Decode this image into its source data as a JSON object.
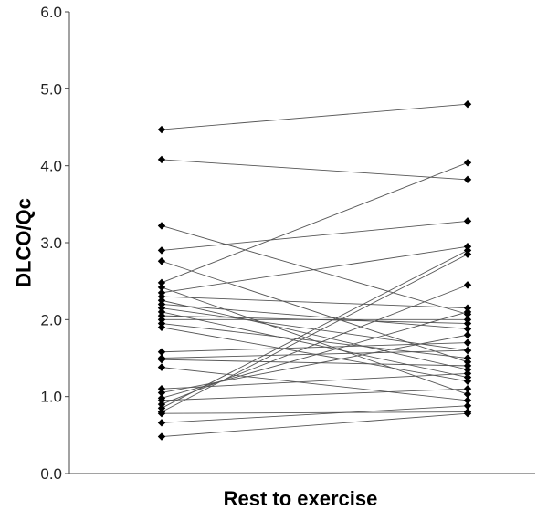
{
  "chart_data": {
    "type": "line",
    "title": "",
    "xlabel": "Rest to exercise",
    "ylabel": "DLCO/Qc",
    "ylim": [
      0,
      6
    ],
    "yticks": [
      "0.0",
      "1.0",
      "2.0",
      "3.0",
      "4.0",
      "5.0",
      "6.0"
    ],
    "x": [
      "Rest",
      "Exercise"
    ],
    "grid": false,
    "legend": "none",
    "line_color": "#555555",
    "marker_color": "#000000",
    "marker": "diamond",
    "pairs": [
      [
        4.47,
        4.8
      ],
      [
        4.08,
        3.82
      ],
      [
        3.22,
        2.07
      ],
      [
        2.9,
        3.28
      ],
      [
        2.76,
        1.45
      ],
      [
        2.48,
        4.04
      ],
      [
        2.42,
        1.03
      ],
      [
        2.35,
        2.95
      ],
      [
        2.3,
        2.15
      ],
      [
        2.25,
        1.35
      ],
      [
        2.2,
        1.88
      ],
      [
        2.15,
        1.6
      ],
      [
        2.1,
        1.25
      ],
      [
        2.05,
        1.95
      ],
      [
        2.0,
        2.0
      ],
      [
        1.95,
        1.5
      ],
      [
        1.9,
        1.2
      ],
      [
        1.58,
        1.7
      ],
      [
        1.5,
        1.6
      ],
      [
        1.48,
        1.4
      ],
      [
        1.38,
        0.95
      ],
      [
        1.1,
        1.3
      ],
      [
        1.05,
        1.8
      ],
      [
        0.98,
        2.1
      ],
      [
        0.95,
        1.1
      ],
      [
        0.9,
        2.45
      ],
      [
        0.85,
        2.9
      ],
      [
        0.8,
        2.85
      ],
      [
        0.78,
        0.8
      ],
      [
        0.66,
        0.88
      ],
      [
        0.48,
        0.78
      ]
    ]
  }
}
